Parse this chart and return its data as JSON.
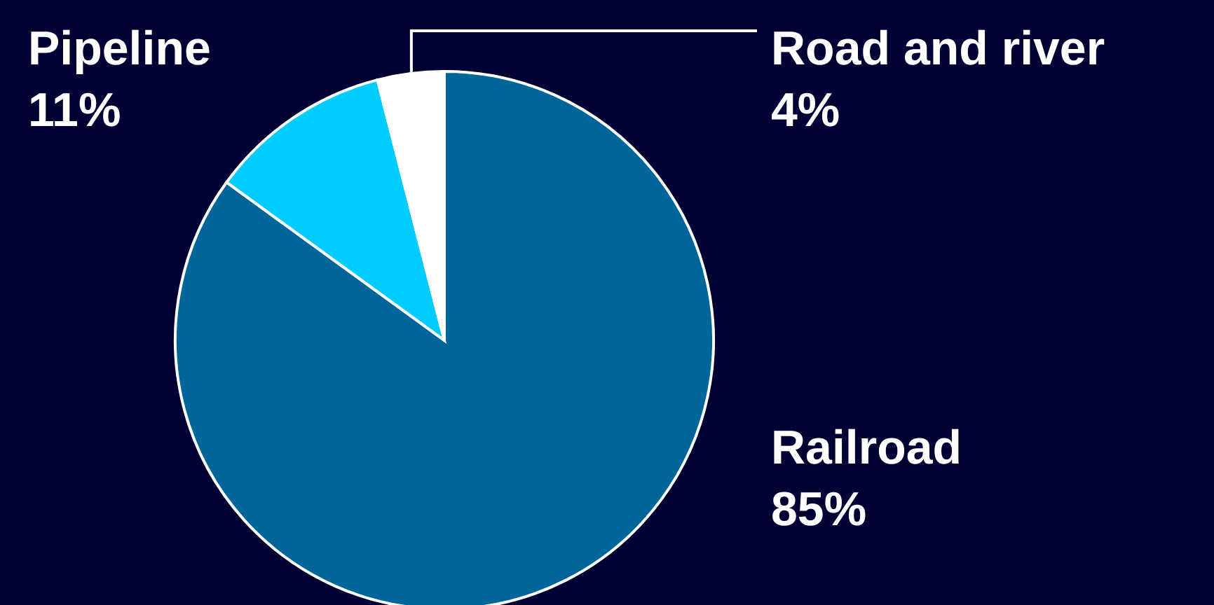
{
  "chart_data": {
    "type": "pie",
    "categories": [
      "Railroad",
      "Pipeline",
      "Road and river"
    ],
    "values": [
      85,
      11,
      4
    ],
    "value_labels": [
      "85%",
      "11%",
      "4%"
    ],
    "colors": [
      "#006699",
      "#00ccff",
      "#ffffff"
    ]
  }
}
